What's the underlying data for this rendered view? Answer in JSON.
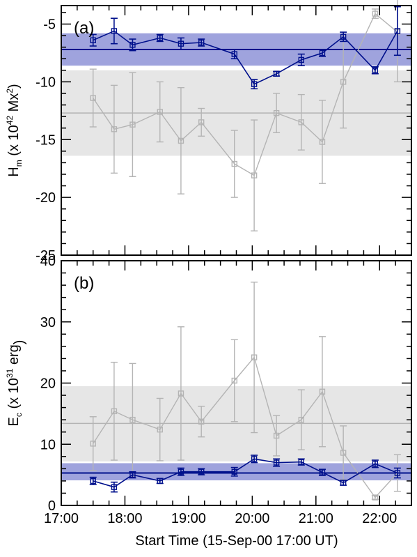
{
  "figure": {
    "xlabel": "Start Time (15-Sep-00 17:00 UT)"
  },
  "colors": {
    "blue": "#00108c",
    "blue_band": "#9fa3dd",
    "gray": "#b4b4b4",
    "gray_band": "#e6e6e6"
  },
  "chart_data": [
    {
      "type": "line",
      "panel_label": "(a)",
      "ylabel_main": "H",
      "ylabel_sub": "m",
      "ylabel_rest": " (x 10",
      "ylabel_exp": "42",
      "ylabel_unit": " Mx",
      "ylabel_unit_exp": "2",
      "ylabel_close": ")",
      "xlim": [
        17.0,
        22.5
      ],
      "ylim": [
        -25,
        -3.4
      ],
      "yticks": [
        -25,
        -20,
        -15,
        -10,
        -5
      ],
      "yticklabels": [
        "-25",
        "-20",
        "-15",
        "-10",
        "-5"
      ],
      "grid": false,
      "bands": [
        {
          "series": "gray",
          "center": -12.7,
          "low": -16.4,
          "high": -9.0
        },
        {
          "series": "blue",
          "center": -7.2,
          "low": -8.6,
          "high": -5.8
        }
      ],
      "series": [
        {
          "color_key": "gray",
          "x": [
            17.5,
            17.83,
            18.12,
            18.55,
            18.88,
            19.2,
            19.72,
            20.03,
            20.38,
            20.77,
            21.1,
            21.43,
            21.93,
            22.28
          ],
          "y": [
            -11.4,
            -14.1,
            -13.7,
            -12.6,
            -15.1,
            -13.5,
            -17.1,
            -18.1,
            -12.7,
            -13.5,
            -15.2,
            -10.0,
            -4.1,
            -5.7
          ],
          "err": [
            2.5,
            3.8,
            4.5,
            2.6,
            4.6,
            1.2,
            2.9,
            4.8,
            1.7,
            2.4,
            3.6,
            4.0,
            0.4,
            4.3
          ]
        },
        {
          "color_key": "blue",
          "x": [
            17.5,
            17.83,
            18.12,
            18.55,
            18.88,
            19.2,
            19.72,
            20.03,
            20.38,
            20.77,
            21.1,
            21.43,
            21.93,
            22.28
          ],
          "y": [
            -6.4,
            -5.6,
            -6.8,
            -6.2,
            -6.7,
            -6.6,
            -7.6,
            -10.2,
            -9.3,
            -8.1,
            -7.5,
            -6.1,
            -9.0,
            -5.6
          ],
          "err": [
            0.5,
            1.1,
            0.5,
            0.3,
            0.5,
            0.3,
            0.4,
            0.4,
            0.2,
            0.5,
            0.3,
            0.4,
            0.3,
            2.1
          ]
        }
      ]
    },
    {
      "type": "line",
      "panel_label": "(b)",
      "ylabel_main": "E",
      "ylabel_sub": "c",
      "ylabel_rest": " (x 10",
      "ylabel_exp": "31",
      "ylabel_unit": " erg",
      "ylabel_unit_exp": "",
      "ylabel_close": ")",
      "xlim": [
        17.0,
        22.5
      ],
      "ylim": [
        0,
        40
      ],
      "yticks": [
        0,
        10,
        20,
        30,
        40
      ],
      "yticklabels": [
        "0",
        "10",
        "20",
        "30",
        "40"
      ],
      "xticks": [
        17,
        18,
        19,
        20,
        21,
        22
      ],
      "xticklabels": [
        "17:00",
        "18:00",
        "19:00",
        "20:00",
        "21:00",
        "22:00"
      ],
      "grid": false,
      "bands": [
        {
          "series": "gray",
          "center": 13.4,
          "low": 7.2,
          "high": 19.5
        },
        {
          "series": "blue",
          "center": 5.3,
          "low": 4.1,
          "high": 6.9
        }
      ],
      "series": [
        {
          "color_key": "gray",
          "x": [
            17.5,
            17.83,
            18.12,
            18.55,
            18.88,
            19.2,
            19.72,
            20.03,
            20.38,
            20.77,
            21.1,
            21.43,
            21.93,
            22.28
          ],
          "y": [
            10.1,
            15.4,
            14.0,
            12.4,
            18.3,
            13.7,
            20.4,
            24.2,
            11.4,
            14.0,
            18.6,
            8.6,
            1.3,
            5.3
          ],
          "err": [
            4.4,
            8.0,
            9.2,
            5.1,
            10.9,
            2.5,
            6.7,
            12.3,
            3.3,
            4.9,
            9.0,
            4.4,
            0.3,
            3.0
          ]
        },
        {
          "color_key": "blue",
          "x": [
            17.5,
            17.83,
            18.12,
            18.55,
            18.88,
            19.2,
            19.72,
            20.03,
            20.38,
            20.77,
            21.1,
            21.43,
            21.93,
            22.28
          ],
          "y": [
            4.0,
            3.0,
            5.0,
            4.0,
            5.5,
            5.5,
            5.5,
            7.6,
            7.0,
            7.1,
            5.4,
            3.7,
            6.8,
            5.3
          ],
          "err": [
            0.6,
            0.8,
            0.5,
            0.4,
            0.6,
            0.5,
            0.7,
            0.6,
            0.6,
            0.5,
            0.5,
            0.4,
            0.6,
            0.8
          ]
        }
      ]
    }
  ]
}
